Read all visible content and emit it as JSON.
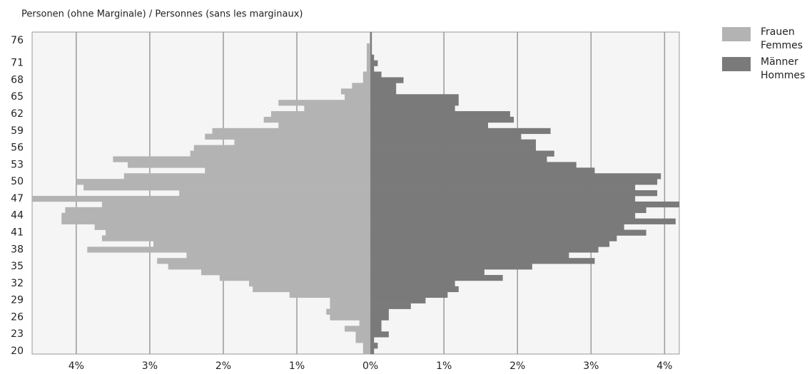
{
  "chart_data": {
    "type": "pyramid",
    "title": "Personen (ohne Marginale) / Personnes (sans les marginaux)",
    "categories": [
      "20",
      null,
      null,
      "23",
      null,
      null,
      "26",
      null,
      null,
      "29",
      null,
      null,
      "32",
      null,
      null,
      "35",
      null,
      null,
      "38",
      null,
      null,
      "41",
      null,
      null,
      "44",
      null,
      null,
      "47",
      null,
      null,
      "50",
      null,
      null,
      "53",
      null,
      null,
      "56",
      null,
      null,
      "59",
      null,
      null,
      "62",
      null,
      null,
      "65",
      null,
      null,
      "68",
      null,
      null,
      "71",
      null,
      null,
      null,
      "76",
      null
    ],
    "series": [
      {
        "name": "Frauen\nFemmes",
        "color": "#b3b3b3",
        "side": "left",
        "values": [
          0.1,
          0.1,
          0.2,
          0.2,
          0.35,
          0.15,
          0.55,
          0.6,
          0.55,
          0.55,
          1.1,
          1.6,
          1.65,
          2.05,
          2.3,
          2.75,
          2.9,
          2.5,
          3.85,
          2.95,
          3.65,
          3.6,
          3.75,
          4.2,
          4.2,
          4.15,
          3.65,
          4.6,
          2.6,
          3.9,
          4.0,
          3.35,
          2.25,
          3.3,
          3.5,
          2.45,
          2.4,
          1.85,
          2.25,
          2.15,
          1.25,
          1.45,
          1.35,
          0.9,
          1.25,
          0.35,
          0.4,
          0.25,
          0.1,
          0.1,
          0.05,
          0.05,
          0.05,
          0.05,
          0.05,
          0,
          0
        ]
      },
      {
        "name": "Männer\nHommes",
        "color": "#7a7a7a",
        "side": "right",
        "values": [
          0.05,
          0.1,
          0.05,
          0.25,
          0.15,
          0.15,
          0.25,
          0.25,
          0.55,
          0.75,
          1.05,
          1.2,
          1.15,
          1.8,
          1.55,
          2.2,
          3.05,
          2.7,
          3.1,
          3.25,
          3.35,
          3.75,
          3.45,
          4.15,
          3.6,
          3.75,
          4.2,
          3.6,
          3.9,
          3.6,
          3.9,
          3.95,
          3.05,
          2.8,
          2.4,
          2.5,
          2.25,
          2.25,
          2.05,
          2.45,
          1.6,
          1.95,
          1.9,
          1.15,
          1.2,
          1.2,
          0.35,
          0.35,
          0.45,
          0.15,
          0.05,
          0.1,
          0.05,
          0.02,
          0.02,
          0.02,
          0.02
        ]
      }
    ],
    "xlim": [
      -4.6,
      4.2
    ],
    "xticks": [
      {
        "value": -4,
        "label": "4%"
      },
      {
        "value": -3,
        "label": "3%"
      },
      {
        "value": -2,
        "label": "2%"
      },
      {
        "value": -1,
        "label": "1%"
      },
      {
        "value": 0,
        "label": "0%"
      },
      {
        "value": 1,
        "label": "1%"
      },
      {
        "value": 2,
        "label": "2%"
      },
      {
        "value": 3,
        "label": "3%"
      },
      {
        "value": 4,
        "label": "4%"
      }
    ],
    "grid": true
  }
}
